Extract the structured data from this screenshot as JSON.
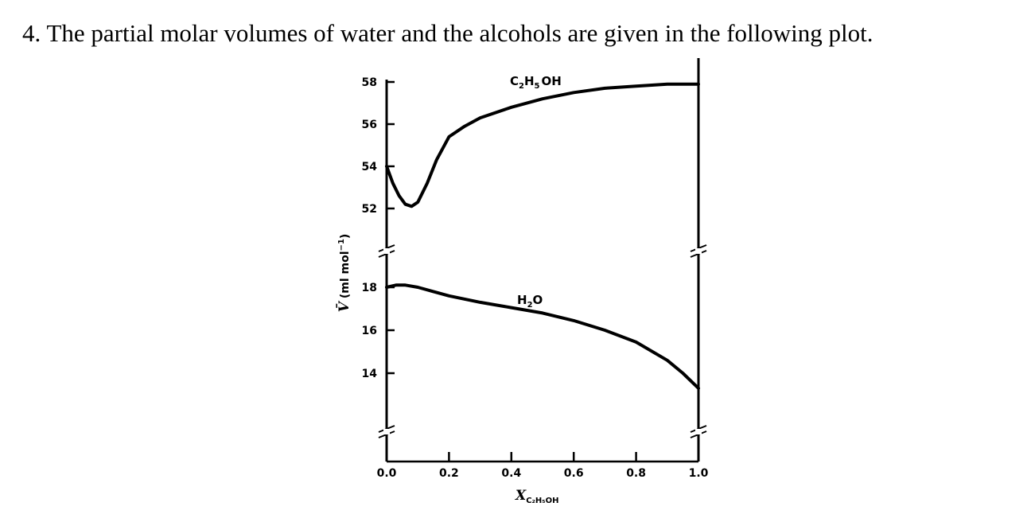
{
  "question": {
    "text": "4. The partial molar volumes of water and the alcohols are given in the following plot."
  },
  "chart_data": {
    "type": "line",
    "xlabel": {
      "main": "X",
      "sub": "C₂H₅OH"
    },
    "ylabel": {
      "main": "V̄",
      "rest": "(ml mol",
      "sup": "−1",
      "close": ")"
    },
    "xlim": [
      0.0,
      1.0
    ],
    "x_ticks": [
      0.0,
      0.2,
      0.4,
      0.6,
      0.8,
      1.0
    ],
    "x_tick_labels": [
      "0.0",
      "0.2",
      "0.4",
      "0.6",
      "0.8",
      "1.0"
    ],
    "axis_breaks": true,
    "panels": [
      {
        "name": "upper",
        "ylim": [
          51.5,
          58.5
        ],
        "y_ticks": [
          52,
          54,
          56,
          58
        ],
        "y_tick_labels": [
          "52",
          "54",
          "56",
          "58"
        ],
        "series": [
          {
            "name": "C₂H₅OH",
            "label": {
              "main": "C",
              "s1": "2",
              "mid": "H",
              "s2": "5",
              "tail": "OH"
            },
            "x": [
              0.0,
              0.02,
              0.04,
              0.06,
              0.08,
              0.1,
              0.13,
              0.16,
              0.2,
              0.25,
              0.3,
              0.4,
              0.5,
              0.6,
              0.7,
              0.8,
              0.9,
              1.0
            ],
            "y": [
              54.0,
              53.2,
              52.6,
              52.2,
              52.1,
              52.3,
              53.2,
              54.3,
              55.4,
              55.9,
              56.3,
              56.8,
              57.2,
              57.5,
              57.7,
              57.8,
              57.9,
              57.9
            ]
          }
        ]
      },
      {
        "name": "lower",
        "ylim": [
          12.5,
          18.8
        ],
        "y_ticks": [
          14,
          16,
          18
        ],
        "y_tick_labels": [
          "14",
          "16",
          "18"
        ],
        "series": [
          {
            "name": "H₂O",
            "label": {
              "main": "H",
              "s1": "2",
              "tail": "O"
            },
            "x": [
              0.0,
              0.03,
              0.06,
              0.1,
              0.15,
              0.2,
              0.3,
              0.4,
              0.5,
              0.6,
              0.7,
              0.8,
              0.9,
              0.95,
              1.0
            ],
            "y": [
              18.0,
              18.1,
              18.1,
              18.0,
              17.8,
              17.6,
              17.3,
              17.05,
              16.8,
              16.45,
              16.0,
              15.45,
              14.6,
              14.0,
              13.3
            ]
          }
        ]
      }
    ]
  }
}
